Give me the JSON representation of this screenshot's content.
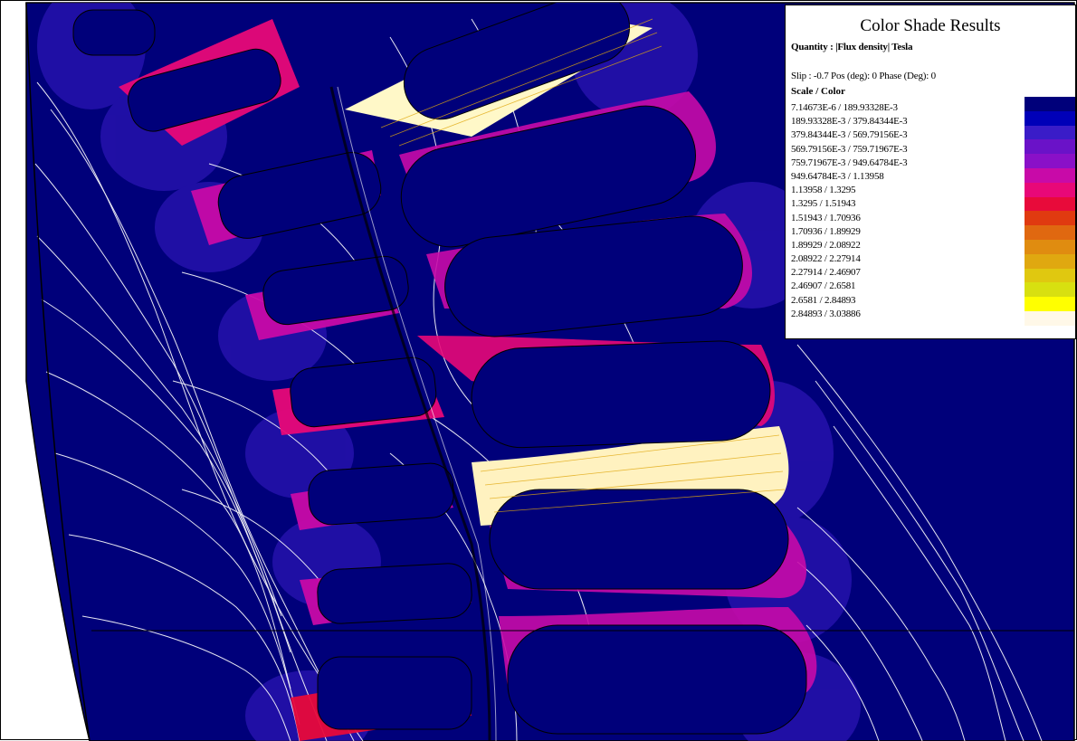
{
  "legend": {
    "title": "Color Shade Results",
    "quantity": "Quantity : |Flux density|  Tesla",
    "meta": "Slip : -0.7  Pos (deg): 0 Phase (Deg): 0",
    "scale_label": "Scale / Color",
    "ranges": [
      "7.14673E-6  /  189.93328E-3",
      "189.93328E-3  /  379.84344E-3",
      "379.84344E-3  /  569.79156E-3",
      "569.79156E-3  /  759.71967E-3",
      "759.71967E-3  /  949.64784E-3",
      "949.64784E-3  /  1.13958",
      "1.13958  /  1.3295",
      "1.3295  /  1.51943",
      "1.51943  /  1.70936",
      "1.70936  /  1.89929",
      "1.89929  /  2.08922",
      "2.08922  /  2.27914",
      "2.27914  /  2.46907",
      "2.46907  /  2.6581",
      "2.6581  /  2.84893",
      "2.84893  /  3.03886"
    ],
    "colors": [
      "#00007a",
      "#0000b8",
      "#3a1cc8",
      "#6a12c8",
      "#8a10c8",
      "#c80aa8",
      "#e80878",
      "#e80a3a",
      "#e03a10",
      "#e06810",
      "#e08c10",
      "#e0a810",
      "#e0c810",
      "#d8e010",
      "#ffff00",
      "#fff8e8"
    ]
  },
  "colors": {
    "background": "#00007a",
    "contour": "#ffffff",
    "outline": "#000000"
  }
}
